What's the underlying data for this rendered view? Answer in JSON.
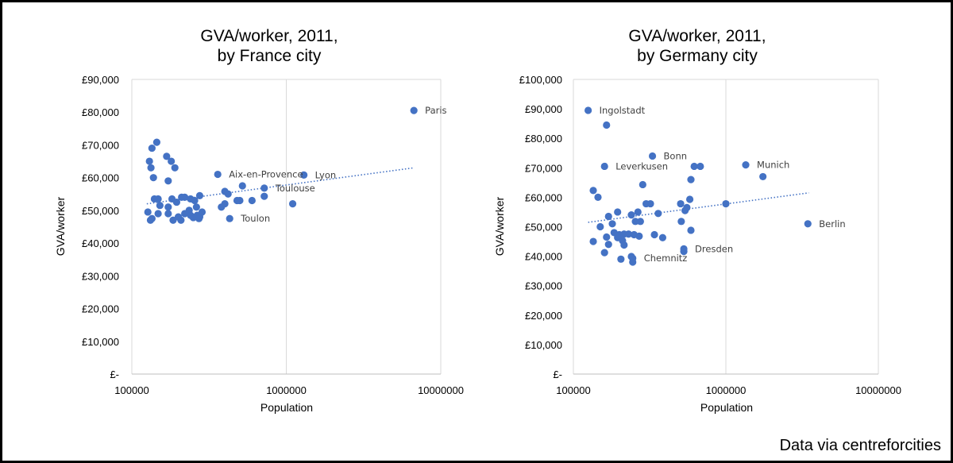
{
  "chart_data": [
    {
      "type": "scatter",
      "title": [
        "GVA/worker, 2011,",
        "by France city"
      ],
      "xlabel": "Population",
      "ylabel": "GVA/worker",
      "xscale": "log",
      "xlim": [
        100000,
        10000000
      ],
      "ylim": [
        0,
        90000
      ],
      "yticks": [
        0,
        10000,
        20000,
        30000,
        40000,
        50000,
        60000,
        70000,
        80000,
        90000
      ],
      "ytick_labels": [
        "£-",
        "£10,000",
        "£20,000",
        "£30,000",
        "£40,000",
        "£50,000",
        "£60,000",
        "£70,000",
        "£80,000",
        "£90,000"
      ],
      "xtick_labels": [
        "100000",
        "1000000",
        "10000000"
      ],
      "grid": "vertical",
      "trendline": {
        "style": "dotted",
        "x": [
          125000,
          6700000
        ],
        "y": [
          52000,
          63000
        ]
      },
      "points": [
        {
          "x": 6700000,
          "y": 80500,
          "label": "Paris"
        },
        {
          "x": 1300000,
          "y": 60800,
          "label": "Lyon"
        },
        {
          "x": 360000,
          "y": 61000,
          "label": "Aix-en-Provence"
        },
        {
          "x": 720000,
          "y": 56800,
          "label": "Toulouse"
        },
        {
          "x": 430000,
          "y": 47500,
          "label": "Toulon"
        },
        {
          "x": 145000,
          "y": 70800
        },
        {
          "x": 135000,
          "y": 69000
        },
        {
          "x": 168000,
          "y": 66500
        },
        {
          "x": 130000,
          "y": 65000
        },
        {
          "x": 180000,
          "y": 65000
        },
        {
          "x": 133000,
          "y": 63000
        },
        {
          "x": 190000,
          "y": 63000
        },
        {
          "x": 138000,
          "y": 60000
        },
        {
          "x": 172000,
          "y": 59000
        },
        {
          "x": 520000,
          "y": 57500
        },
        {
          "x": 400000,
          "y": 55800
        },
        {
          "x": 420000,
          "y": 55000
        },
        {
          "x": 275000,
          "y": 54500
        },
        {
          "x": 720000,
          "y": 54300
        },
        {
          "x": 210000,
          "y": 54000
        },
        {
          "x": 220000,
          "y": 54000
        },
        {
          "x": 140000,
          "y": 53500
        },
        {
          "x": 148000,
          "y": 53500
        },
        {
          "x": 182000,
          "y": 53500
        },
        {
          "x": 240000,
          "y": 53500
        },
        {
          "x": 255000,
          "y": 53000
        },
        {
          "x": 480000,
          "y": 53000
        },
        {
          "x": 500000,
          "y": 53000
        },
        {
          "x": 600000,
          "y": 53000
        },
        {
          "x": 195000,
          "y": 52500
        },
        {
          "x": 1100000,
          "y": 52000
        },
        {
          "x": 400000,
          "y": 52000
        },
        {
          "x": 152000,
          "y": 51500
        },
        {
          "x": 172000,
          "y": 51000
        },
        {
          "x": 262000,
          "y": 51000
        },
        {
          "x": 380000,
          "y": 51000
        },
        {
          "x": 235000,
          "y": 50000
        },
        {
          "x": 285000,
          "y": 49500
        },
        {
          "x": 127000,
          "y": 49500
        },
        {
          "x": 148000,
          "y": 49000
        },
        {
          "x": 172000,
          "y": 49000
        },
        {
          "x": 220000,
          "y": 49000
        },
        {
          "x": 240000,
          "y": 48500
        },
        {
          "x": 265000,
          "y": 48500
        },
        {
          "x": 200000,
          "y": 48000
        },
        {
          "x": 275000,
          "y": 48000
        },
        {
          "x": 135000,
          "y": 47500
        },
        {
          "x": 250000,
          "y": 47800
        },
        {
          "x": 132000,
          "y": 47000
        },
        {
          "x": 185000,
          "y": 47000
        },
        {
          "x": 208000,
          "y": 47000
        },
        {
          "x": 272000,
          "y": 47500
        }
      ]
    },
    {
      "type": "scatter",
      "title": [
        "GVA/worker, 2011,",
        "by Germany city"
      ],
      "xlabel": "Population",
      "ylabel": "GVA/worker",
      "xscale": "log",
      "xlim": [
        100000,
        10000000
      ],
      "ylim": [
        0,
        100000
      ],
      "yticks": [
        0,
        10000,
        20000,
        30000,
        40000,
        50000,
        60000,
        70000,
        80000,
        90000,
        100000
      ],
      "ytick_labels": [
        "£-",
        "£10,000",
        "£20,000",
        "£30,000",
        "£40,000",
        "£50,000",
        "£60,000",
        "£70,000",
        "£80,000",
        "£90,000",
        "£100,000"
      ],
      "xtick_labels": [
        "100000",
        "1000000",
        "10000000"
      ],
      "grid": "vertical",
      "trendline": {
        "style": "dotted",
        "x": [
          125000,
          3500000
        ],
        "y": [
          51500,
          61500
        ]
      },
      "points": [
        {
          "x": 125000,
          "y": 89500,
          "label": "Ingolstadt"
        },
        {
          "x": 330000,
          "y": 74000,
          "label": "Bonn"
        },
        {
          "x": 160000,
          "y": 70500,
          "label": "Leverkusen"
        },
        {
          "x": 1350000,
          "y": 71000,
          "label": "Munich"
        },
        {
          "x": 3450000,
          "y": 51000,
          "label": "Berlin"
        },
        {
          "x": 530000,
          "y": 42500,
          "label": "Dresden"
        },
        {
          "x": 245000,
          "y": 39300,
          "label": "Chemnitz"
        },
        {
          "x": 165000,
          "y": 84500
        },
        {
          "x": 620000,
          "y": 70500
        },
        {
          "x": 680000,
          "y": 70500
        },
        {
          "x": 1750000,
          "y": 67000
        },
        {
          "x": 590000,
          "y": 66000
        },
        {
          "x": 285000,
          "y": 64300
        },
        {
          "x": 135000,
          "y": 62300
        },
        {
          "x": 145000,
          "y": 60000
        },
        {
          "x": 580000,
          "y": 59300
        },
        {
          "x": 1000000,
          "y": 57800
        },
        {
          "x": 300000,
          "y": 57800
        },
        {
          "x": 320000,
          "y": 57800
        },
        {
          "x": 505000,
          "y": 57800
        },
        {
          "x": 555000,
          "y": 56500
        },
        {
          "x": 540000,
          "y": 55500
        },
        {
          "x": 265000,
          "y": 55000
        },
        {
          "x": 195000,
          "y": 55000
        },
        {
          "x": 360000,
          "y": 54500
        },
        {
          "x": 240000,
          "y": 54000
        },
        {
          "x": 170000,
          "y": 53500
        },
        {
          "x": 255000,
          "y": 51800
        },
        {
          "x": 275000,
          "y": 51800
        },
        {
          "x": 510000,
          "y": 51800
        },
        {
          "x": 180000,
          "y": 51000
        },
        {
          "x": 150000,
          "y": 50000
        },
        {
          "x": 590000,
          "y": 48800
        },
        {
          "x": 185000,
          "y": 48000
        },
        {
          "x": 215000,
          "y": 47500
        },
        {
          "x": 230000,
          "y": 47500
        },
        {
          "x": 200000,
          "y": 47300
        },
        {
          "x": 340000,
          "y": 47300
        },
        {
          "x": 250000,
          "y": 47300
        },
        {
          "x": 270000,
          "y": 46800
        },
        {
          "x": 165000,
          "y": 46500
        },
        {
          "x": 195000,
          "y": 46300
        },
        {
          "x": 385000,
          "y": 46300
        },
        {
          "x": 210000,
          "y": 45300
        },
        {
          "x": 135000,
          "y": 45000
        },
        {
          "x": 170000,
          "y": 44000
        },
        {
          "x": 215000,
          "y": 43800
        },
        {
          "x": 530000,
          "y": 41600
        },
        {
          "x": 160000,
          "y": 41200
        },
        {
          "x": 240000,
          "y": 39900
        },
        {
          "x": 205000,
          "y": 39000
        },
        {
          "x": 245000,
          "y": 38000
        }
      ]
    }
  ],
  "source_note": "Data via centreforcities",
  "colors": {
    "marker": "#4472C4",
    "gridline": "#D9D9D9",
    "border": "#000000"
  }
}
